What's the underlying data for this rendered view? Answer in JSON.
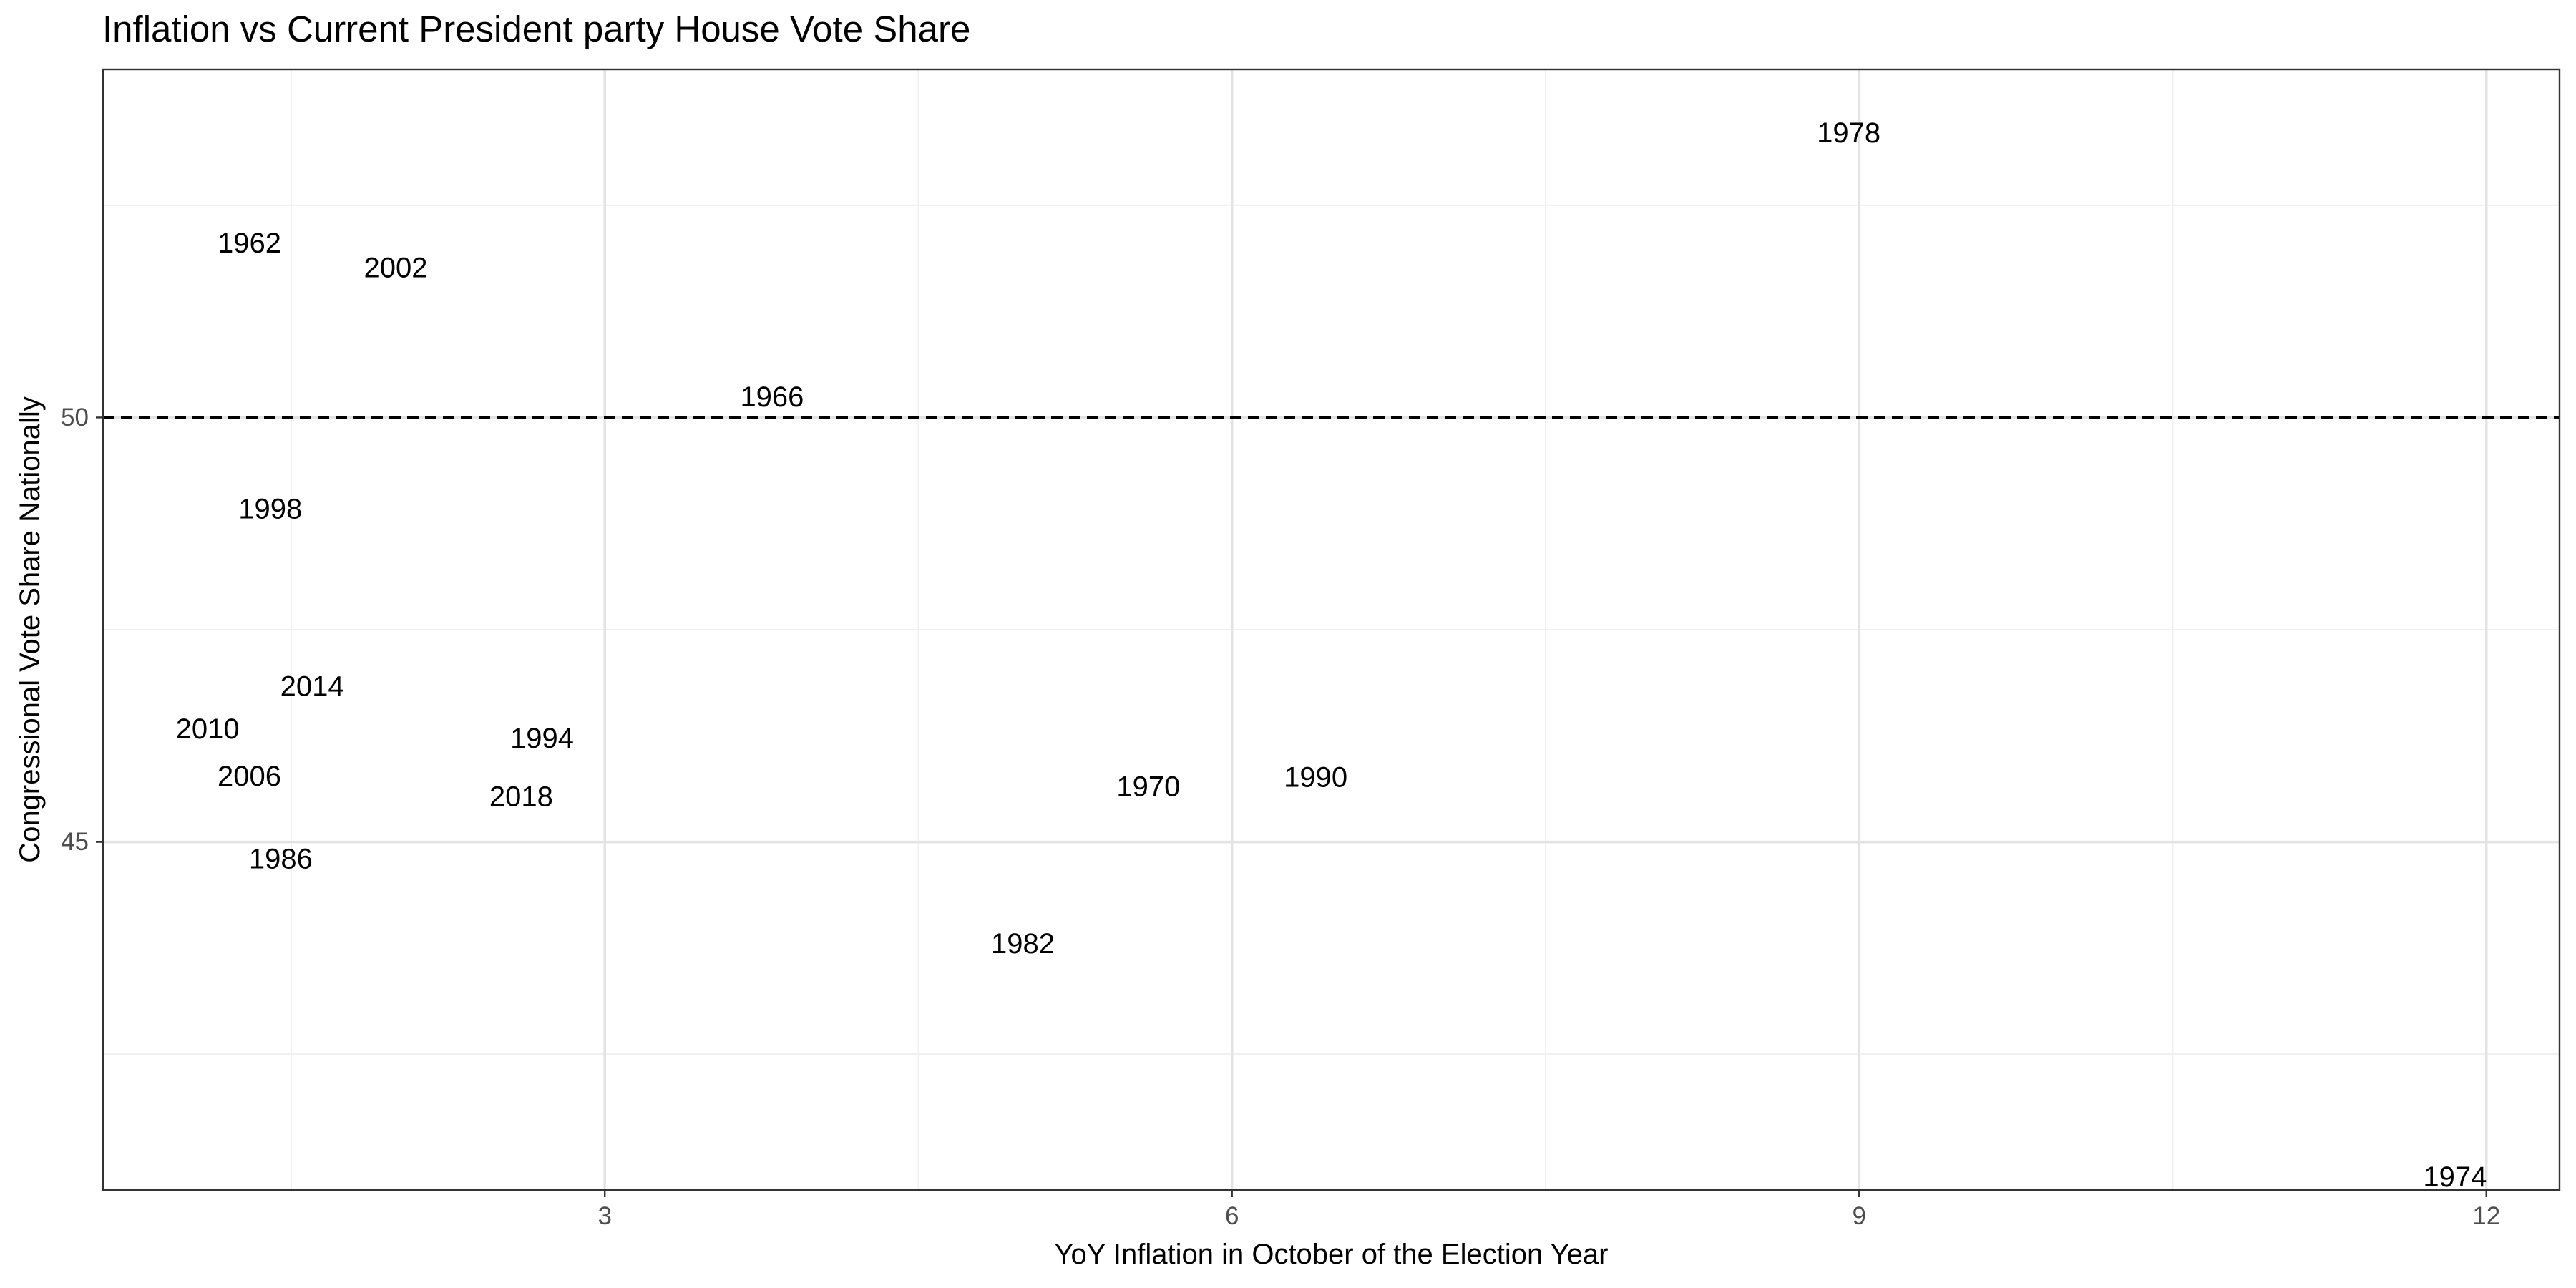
{
  "chart_data": {
    "type": "scatter",
    "title": "Inflation vs Current President party House Vote Share",
    "xlabel": "YoY Inflation in October of the Election Year",
    "ylabel": "Congressional Vote Share Nationally",
    "xlim": [
      0.6,
      12.35
    ],
    "ylim": [
      40.9,
      54.1
    ],
    "x_major_ticks": [
      3,
      6,
      9,
      12
    ],
    "x_minor_ticks": [
      1.5,
      4.5,
      7.5,
      10.5
    ],
    "y_major_ticks": [
      45,
      50
    ],
    "y_minor_ticks": [
      42.5,
      47.5,
      52.5
    ],
    "grid": true,
    "legend": "none",
    "reference_line": {
      "y": 50,
      "style": "dashed",
      "color": "#000000"
    },
    "points": [
      {
        "label": "1962",
        "x": 1.3,
        "y": 52.05
      },
      {
        "label": "1966",
        "x": 3.8,
        "y": 50.24
      },
      {
        "label": "1970",
        "x": 5.6,
        "y": 45.65
      },
      {
        "label": "1974",
        "x": 11.85,
        "y": 41.05
      },
      {
        "label": "1978",
        "x": 8.95,
        "y": 53.35
      },
      {
        "label": "1982",
        "x": 5.0,
        "y": 43.8
      },
      {
        "label": "1986",
        "x": 1.45,
        "y": 44.8
      },
      {
        "label": "1990",
        "x": 6.4,
        "y": 45.76
      },
      {
        "label": "1994",
        "x": 2.7,
        "y": 46.22
      },
      {
        "label": "1998",
        "x": 1.4,
        "y": 48.92
      },
      {
        "label": "2002",
        "x": 2.0,
        "y": 51.76
      },
      {
        "label": "2006",
        "x": 1.3,
        "y": 45.77
      },
      {
        "label": "2010",
        "x": 1.1,
        "y": 46.33
      },
      {
        "label": "2014",
        "x": 1.6,
        "y": 46.83
      },
      {
        "label": "2018",
        "x": 2.6,
        "y": 45.53
      }
    ]
  }
}
